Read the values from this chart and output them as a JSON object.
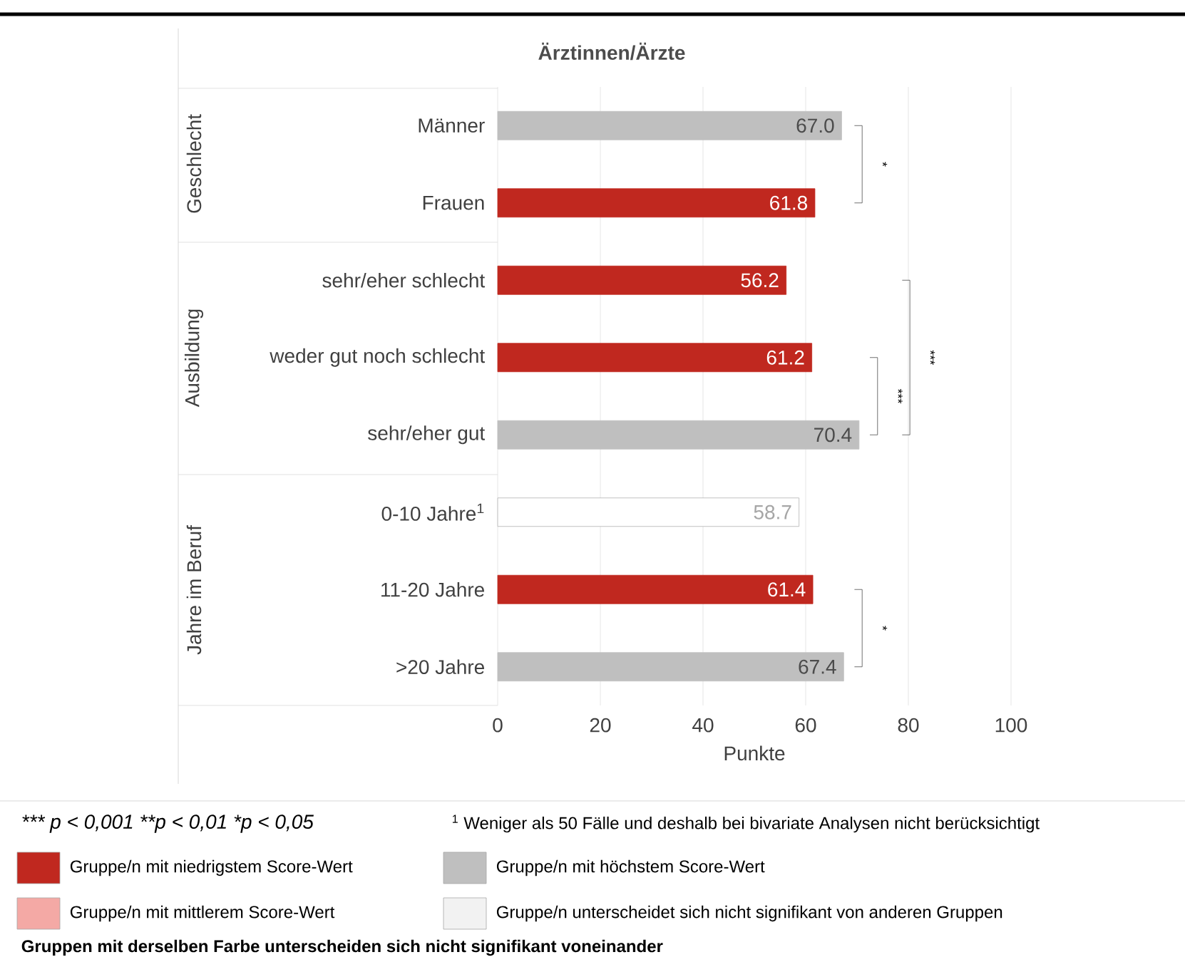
{
  "chart_data": {
    "type": "bar",
    "orientation": "horizontal",
    "title": "Ärztinnen/Ärzte",
    "xlabel": "Punkte",
    "categories": [
      "Männer",
      "Frauen",
      "sehr/eher schlecht",
      "weder gut noch schlecht",
      "sehr/eher gut",
      "0-10 Jahre$^{1}$",
      "11-20 Jahre",
      ">20 Jahre"
    ],
    "values": [
      67.0,
      61.8,
      56.2,
      61.2,
      70.4,
      58.7,
      61.4,
      67.4
    ],
    "colors": [
      "#bfbfbf",
      "#c0281f",
      "#c0281f",
      "#c0281f",
      "#bfbfbf",
      "#ffffff",
      "#c0281f",
      "#bfbfbf"
    ],
    "value_labels": [
      "67.0",
      "61.8",
      "56.2",
      "61.2",
      "70.4",
      "58.7",
      "61.4",
      "67.4"
    ],
    "xlim": [
      0,
      100
    ],
    "xticks": [
      0,
      20,
      40,
      60,
      80,
      100
    ],
    "grid": "x",
    "annotations": [
      "Geschlecht",
      "Ausbildung",
      "Jahre im Beruf",
      "*",
      "***",
      "***",
      "*",
      "*** p < 0,001  **p < 0,01  *p < 0,05",
      "$^{1}$ Weniger als 50 Fälle und deshalb bei bivariate Analysen nicht berücksichtigt",
      "Gruppe/n mit niedrigstem Score-Wert",
      "Gruppe/n mit höchstem Score-Wert",
      "Gruppe/n mit mittlerem Score-Wert",
      "Gruppe/n unterscheidet sich nicht signifikant von anderen Gruppen",
      "Gruppen mit derselben Farbe unterscheiden sich nicht signifikant voneinander"
    ]
  }
}
